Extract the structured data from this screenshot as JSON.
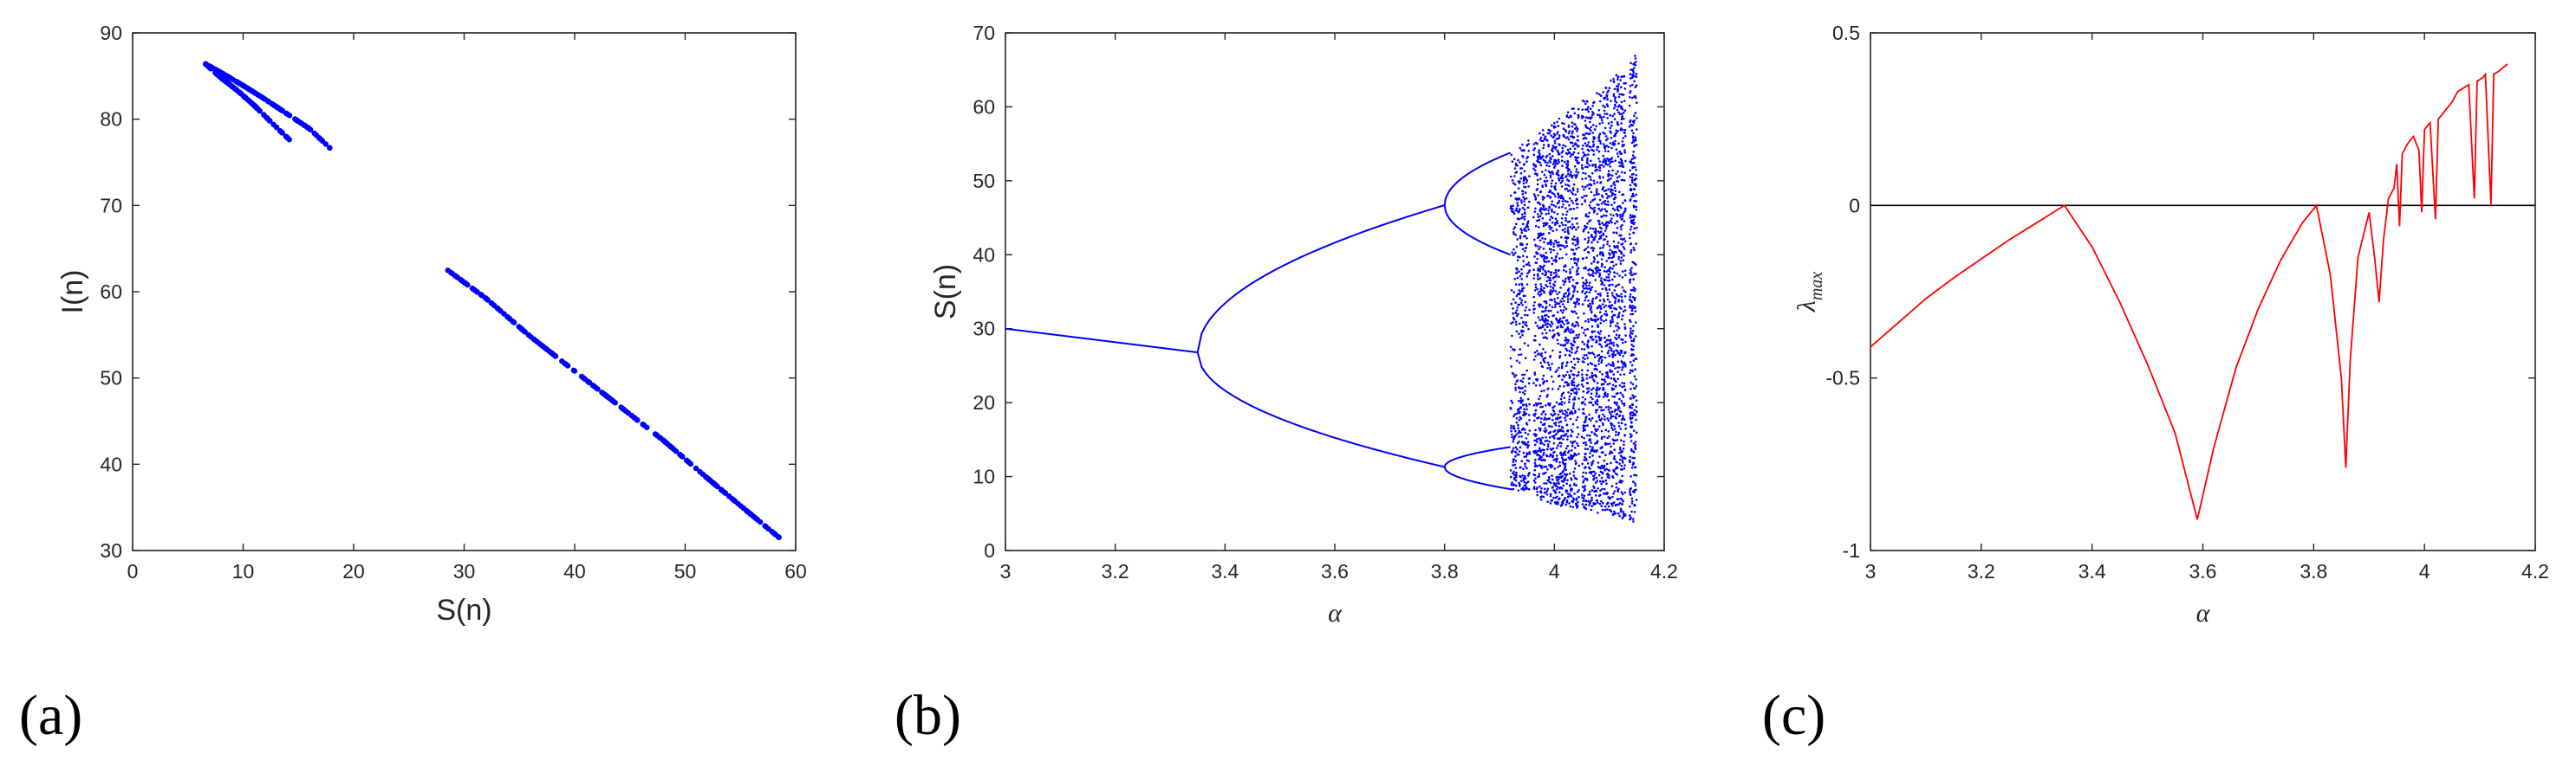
{
  "panel_labels": [
    "(a)",
    "(b)",
    "(c)"
  ],
  "colors": {
    "blue": "#0000ff",
    "red": "#ff0000",
    "axis": "#262626",
    "zero_line": "#000000"
  },
  "chart_data": [
    {
      "id": "a",
      "type": "scatter",
      "xlabel": "S(n)",
      "ylabel": "I(n)",
      "xlim": [
        0,
        60
      ],
      "ylim": [
        30,
        90
      ],
      "xticks": [
        0,
        10,
        20,
        30,
        40,
        50,
        60
      ],
      "yticks": [
        30,
        40,
        50,
        60,
        70,
        80,
        90
      ],
      "color": "#0000ff",
      "series": [
        {
          "values": [
            [
              6.6,
              86.4
            ],
            [
              8.0,
              85.4
            ],
            [
              10.0,
              83.9
            ],
            [
              12.0,
              82.3
            ],
            [
              14.0,
              80.6
            ],
            [
              16.0,
              78.9
            ],
            [
              17.9,
              76.6
            ]
          ]
        },
        {
          "values": [
            [
              6.6,
              86.4
            ],
            [
              8.0,
              84.8
            ],
            [
              9.5,
              83.3
            ],
            [
              11.0,
              81.6
            ],
            [
              12.5,
              79.7
            ],
            [
              14.2,
              77.6
            ]
          ]
        },
        {
          "values": [
            [
              28.4,
              62.6
            ],
            [
              32.0,
              59.2
            ],
            [
              36.0,
              54.8
            ],
            [
              40.0,
              50.8
            ],
            [
              44.0,
              46.8
            ],
            [
              48.0,
              42.8
            ],
            [
              52.0,
              38.4
            ],
            [
              55.0,
              35.2
            ],
            [
              58.7,
              31.3
            ]
          ]
        }
      ]
    },
    {
      "id": "b",
      "type": "scatter",
      "xlabel": "α",
      "ylabel": "S(n)",
      "xlim": [
        3,
        4.2
      ],
      "ylim": [
        0,
        70
      ],
      "xticks": [
        "3",
        "3.2",
        "3.4",
        "3.6",
        "3.8",
        "4",
        "4.2"
      ],
      "yticks": [
        0,
        10,
        20,
        30,
        40,
        50,
        60,
        70
      ],
      "color": "#0000ff",
      "description_values": {
        "fixed_point": [
          [
            3.0,
            30.0
          ],
          [
            3.35,
            26.8
          ]
        ],
        "period2_upper": [
          [
            3.35,
            26.8
          ],
          [
            3.45,
            36.5
          ],
          [
            3.55,
            40.5
          ],
          [
            3.65,
            43.2
          ],
          [
            3.8,
            46.7
          ]
        ],
        "period2_lower": [
          [
            3.35,
            26.8
          ],
          [
            3.45,
            17.5
          ],
          [
            3.55,
            14.5
          ],
          [
            3.65,
            12.8
          ],
          [
            3.8,
            11.3
          ]
        ],
        "period4_upper": [
          [
            3.8,
            46.7
          ],
          [
            3.85,
            50.2
          ],
          [
            3.9,
            52.8
          ],
          [
            3.92,
            53.8
          ]
        ],
        "period4_upper_b": [
          [
            3.8,
            46.7
          ],
          [
            3.85,
            43.0
          ],
          [
            3.9,
            41.0
          ],
          [
            3.92,
            40.0
          ]
        ],
        "period4_lower": [
          [
            3.8,
            11.3
          ],
          [
            3.85,
            12.2
          ],
          [
            3.9,
            13.3
          ],
          [
            3.92,
            14.0
          ]
        ],
        "period4_lower_b": [
          [
            3.8,
            11.3
          ],
          [
            3.85,
            10.0
          ],
          [
            3.9,
            8.9
          ],
          [
            3.92,
            8.3
          ]
        ],
        "chaos_upper_edge": [
          [
            3.92,
            53.8
          ],
          [
            4.0,
            58.0
          ],
          [
            4.1,
            63.5
          ],
          [
            4.15,
            67.2
          ]
        ],
        "chaos_lower_edge": [
          [
            3.92,
            8.3
          ],
          [
            4.0,
            6.2
          ],
          [
            4.1,
            4.8
          ],
          [
            4.15,
            3.6
          ]
        ],
        "chaos_alpha_range": [
          3.92,
          4.15
        ]
      }
    },
    {
      "id": "c",
      "type": "line",
      "xlabel": "α",
      "ylabel": "λmax",
      "ylabel_main": "λ",
      "ylabel_sub": "max",
      "xlim": [
        3,
        4.2
      ],
      "ylim": [
        -1,
        0.5
      ],
      "xticks": [
        "3",
        "3.2",
        "3.4",
        "3.6",
        "3.8",
        "4",
        "4.2"
      ],
      "yticks": [
        "-1",
        "-0.5",
        "0",
        "0.5"
      ],
      "color": "#ff0000",
      "zero_line": true,
      "series": [
        {
          "values": [
            [
              3.0,
              -0.41
            ],
            [
              3.05,
              -0.34
            ],
            [
              3.1,
              -0.27
            ],
            [
              3.15,
              -0.21
            ],
            [
              3.2,
              -0.155
            ],
            [
              3.25,
              -0.1
            ],
            [
              3.3,
              -0.05
            ],
            [
              3.35,
              0.0
            ],
            [
              3.4,
              -0.12
            ],
            [
              3.45,
              -0.28
            ],
            [
              3.5,
              -0.46
            ],
            [
              3.55,
              -0.66
            ],
            [
              3.59,
              -0.91
            ],
            [
              3.62,
              -0.7
            ],
            [
              3.66,
              -0.47
            ],
            [
              3.7,
              -0.3
            ],
            [
              3.74,
              -0.16
            ],
            [
              3.78,
              -0.05
            ],
            [
              3.805,
              0.0
            ],
            [
              3.83,
              -0.2
            ],
            [
              3.85,
              -0.5
            ],
            [
              3.858,
              -0.76
            ],
            [
              3.866,
              -0.45
            ],
            [
              3.88,
              -0.15
            ],
            [
              3.9,
              -0.02
            ],
            [
              3.91,
              -0.15
            ],
            [
              3.918,
              -0.28
            ],
            [
              3.926,
              -0.1
            ],
            [
              3.935,
              0.02
            ],
            [
              3.945,
              0.05
            ],
            [
              3.95,
              0.12
            ],
            [
              3.955,
              -0.06
            ],
            [
              3.96,
              0.15
            ],
            [
              3.97,
              0.18
            ],
            [
              3.98,
              0.2
            ],
            [
              3.99,
              0.16
            ],
            [
              3.995,
              -0.02
            ],
            [
              4.0,
              0.22
            ],
            [
              4.01,
              0.24
            ],
            [
              4.02,
              -0.04
            ],
            [
              4.025,
              0.25
            ],
            [
              4.04,
              0.28
            ],
            [
              4.05,
              0.3
            ],
            [
              4.06,
              0.33
            ],
            [
              4.07,
              0.34
            ],
            [
              4.08,
              0.35
            ],
            [
              4.09,
              0.02
            ],
            [
              4.095,
              0.36
            ],
            [
              4.105,
              0.37
            ],
            [
              4.11,
              0.38
            ],
            [
              4.12,
              0.0
            ],
            [
              4.125,
              0.38
            ],
            [
              4.135,
              0.39
            ],
            [
              4.15,
              0.41
            ]
          ]
        }
      ]
    }
  ]
}
